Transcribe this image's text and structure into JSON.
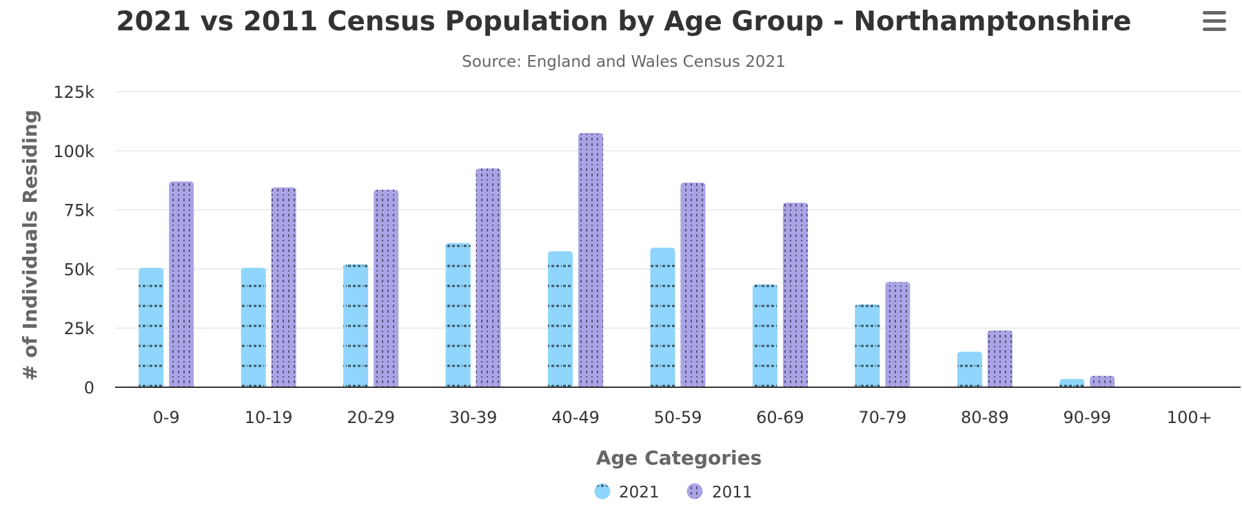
{
  "chart_data": {
    "type": "bar",
    "title": "2021 vs 2011 Census Population by Age Group - Northamptonshire",
    "subtitle": "Source: England and Wales Census 2021",
    "xlabel": "Age Categories",
    "ylabel": "# of Individuals Residing",
    "categories": [
      "0-9",
      "10-19",
      "20-29",
      "30-39",
      "40-49",
      "50-59",
      "60-69",
      "70-79",
      "80-89",
      "90-99",
      "100+"
    ],
    "ylim": [
      0,
      125000
    ],
    "yticks": [
      0,
      25000,
      50000,
      75000,
      100000,
      125000
    ],
    "ytick_labels": [
      "0",
      "25k",
      "50k",
      "75k",
      "100k",
      "125k"
    ],
    "grid": true,
    "legend_position": "bottom-center",
    "series": [
      {
        "name": "2021",
        "color": "#90d5fb",
        "pattern_color": "#3a5566",
        "values": [
          50500,
          50500,
          52000,
          61000,
          57500,
          59000,
          43500,
          35000,
          15000,
          3500,
          150
        ]
      },
      {
        "name": "2011",
        "color": "#aaa4e6",
        "pattern_color": "#3d3a5c",
        "values": [
          87000,
          84500,
          83500,
          92500,
          107500,
          86500,
          78000,
          44500,
          24000,
          4800,
          150
        ]
      }
    ]
  },
  "ui": {
    "menu_icon": "hamburger-menu-icon"
  }
}
